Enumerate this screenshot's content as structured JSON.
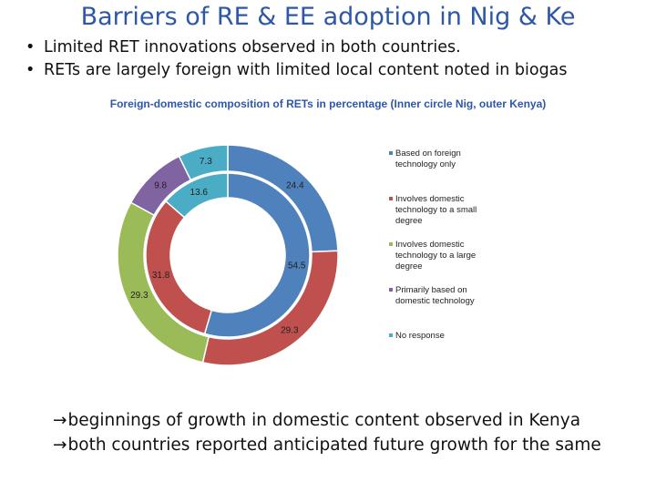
{
  "slide": {
    "title": "Barriers of RE & EE adoption in Nig & Ke",
    "bullets": [
      "Limited RET innovations observed in both countries.",
      "RETs are largely foreign with limited local content noted in biogas"
    ],
    "bullet_marker": "•",
    "footer_arrow": "→",
    "footer_lines": [
      "beginnings of growth in domestic content observed in Kenya",
      "both countries reported anticipated future growth for the same"
    ]
  },
  "chart_data": {
    "type": "donut",
    "title": "Foreign-domestic composition of RETs in percentage (Inner circle Nig, outer Kenya)",
    "categories": [
      "Based on foreign technology only",
      "Involves domestic technology to a small degree",
      "Involves domestic technology to a large degree",
      "Primarily based on domestic technology",
      "No response"
    ],
    "colors": [
      "#4f81bd",
      "#c0504d",
      "#9bbb59",
      "#8064a2",
      "#4bacc6"
    ],
    "series": [
      {
        "name": "Nigeria (inner)",
        "values": [
          54.5,
          31.8,
          0,
          0,
          13.6
        ],
        "labels": [
          "54.5",
          "31.8",
          "",
          "",
          "13.6"
        ]
      },
      {
        "name": "Kenya (outer)",
        "values": [
          24.4,
          29.3,
          29.3,
          9.8,
          7.3
        ],
        "labels": [
          "24.4",
          "29.3",
          "29.3",
          "9.8",
          "7.3"
        ]
      }
    ]
  }
}
